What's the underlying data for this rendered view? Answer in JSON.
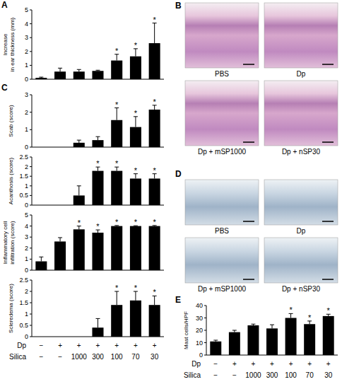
{
  "chart_data": [
    {
      "type": "bar",
      "panel": "A",
      "ylabel": [
        "Increase",
        "in ear thickness (mm)"
      ],
      "categories": [
        null,
        null,
        null,
        null,
        null,
        null,
        null
      ],
      "values": [
        0.1,
        0.55,
        0.55,
        0.6,
        1.35,
        1.65,
        2.6
      ],
      "errors": [
        0.05,
        0.25,
        0.15,
        0.05,
        0.45,
        0.55,
        1.45
      ],
      "color": "#000000",
      "ylim": [
        0,
        5
      ],
      "yticks": [
        0,
        1,
        2,
        3,
        4,
        5
      ],
      "annotations": [
        {
          "category_index": 4,
          "text": "*"
        },
        {
          "category_index": 5,
          "text": "*"
        },
        {
          "category_index": 6,
          "text": "*"
        }
      ]
    },
    {
      "type": "bar",
      "panel": "C",
      "ylabel": [
        "Scab (score)"
      ],
      "categories": [
        null,
        null,
        null,
        null,
        null,
        null,
        null
      ],
      "values": [
        0,
        0,
        0.25,
        0.4,
        1.55,
        1.15,
        2.15
      ],
      "errors": [
        0,
        0,
        0.15,
        0.2,
        0.7,
        0.6,
        0.25
      ],
      "color": "#000000",
      "ylim": [
        0,
        3
      ],
      "yticks": [
        0,
        1,
        2,
        3
      ],
      "annotations": [
        {
          "category_index": 4,
          "text": "*"
        },
        {
          "category_index": 5,
          "text": "*"
        },
        {
          "category_index": 6,
          "text": "*"
        }
      ]
    },
    {
      "type": "bar",
      "ylabel": [
        "Acanthosis (score)"
      ],
      "categories": [
        null,
        null,
        null,
        null,
        null,
        null,
        null
      ],
      "values": [
        0,
        0,
        0.5,
        1.78,
        1.78,
        1.38,
        1.38
      ],
      "errors": [
        0,
        0,
        0.5,
        0.2,
        0.2,
        0.25,
        0.25
      ],
      "color": "#000000",
      "ylim": [
        0,
        2.5
      ],
      "yticks": [
        0,
        0.5,
        1,
        1.5,
        2,
        2.5
      ],
      "annotations": [
        {
          "category_index": 3,
          "text": "*"
        },
        {
          "category_index": 4,
          "text": "*"
        },
        {
          "category_index": 5,
          "text": "*"
        },
        {
          "category_index": 6,
          "text": "*"
        }
      ]
    },
    {
      "type": "bar",
      "ylabel": [
        "Inflammatory cell",
        "infiltration (score)"
      ],
      "categories": [
        null,
        null,
        null,
        null,
        null,
        null,
        null
      ],
      "values": [
        0.8,
        2.6,
        3.7,
        3.4,
        4.0,
        4.0,
        4.0
      ],
      "errors": [
        0.4,
        0.35,
        0.3,
        0.25,
        0.05,
        0.03,
        0.05
      ],
      "color": "#000000",
      "ylim": [
        0,
        5
      ],
      "yticks": [
        0,
        1,
        2,
        3,
        4,
        5
      ],
      "annotations": [
        {
          "category_index": 2,
          "text": "*"
        },
        {
          "category_index": 3,
          "text": "*"
        },
        {
          "category_index": 4,
          "text": "*"
        },
        {
          "category_index": 5,
          "text": "*"
        },
        {
          "category_index": 6,
          "text": "*"
        }
      ]
    },
    {
      "type": "bar",
      "ylabel": [
        "Scleredema (score)"
      ],
      "categories": [
        null,
        null,
        null,
        null,
        null,
        null,
        null
      ],
      "values": [
        0,
        0,
        0,
        0.4,
        1.4,
        1.6,
        1.4
      ],
      "errors": [
        0,
        0,
        0,
        0.4,
        0.6,
        0.4,
        0.4
      ],
      "color": "#000000",
      "ylim": [
        0,
        2.5
      ],
      "yticks": [
        0,
        0.5,
        1,
        1.5,
        2,
        2.5
      ],
      "annotations": [
        {
          "category_index": 4,
          "text": "*"
        },
        {
          "category_index": 5,
          "text": "*"
        },
        {
          "category_index": 6,
          "text": "*"
        }
      ]
    },
    {
      "type": "bar",
      "panel": "E",
      "ylabel": [
        "Mast cells/HPF"
      ],
      "categories": [
        null,
        null,
        null,
        null,
        null,
        null,
        null
      ],
      "values": [
        11,
        18.5,
        24,
        21.5,
        30,
        25,
        31.5
      ],
      "errors": [
        1,
        1.5,
        1,
        3,
        3.5,
        2.5,
        1.5
      ],
      "color": "#000000",
      "ylim": [
        0,
        40
      ],
      "yticks": [
        0,
        10,
        20,
        30,
        40
      ],
      "annotations": [
        {
          "category_index": 4,
          "text": "*"
        },
        {
          "category_index": 5,
          "text": "*"
        },
        {
          "category_index": 6,
          "text": "*"
        }
      ]
    }
  ],
  "x_table": {
    "rows": [
      {
        "label": "Dp",
        "cells": [
          "−",
          "+",
          "+",
          "+",
          "+",
          "+",
          "+"
        ]
      },
      {
        "label": "Silica",
        "cells": [
          "−",
          "−",
          "1000",
          "300",
          "100",
          "70",
          "30"
        ]
      }
    ]
  },
  "images": [
    {
      "panel": "B",
      "labels": [
        "PBS",
        "Dp",
        "Dp + mSP1000",
        "Dp + nSP30"
      ]
    },
    {
      "panel": "D",
      "labels": [
        "PBS",
        "Dp",
        "Dp + mSP1000",
        "Dp + nSP30"
      ]
    }
  ]
}
